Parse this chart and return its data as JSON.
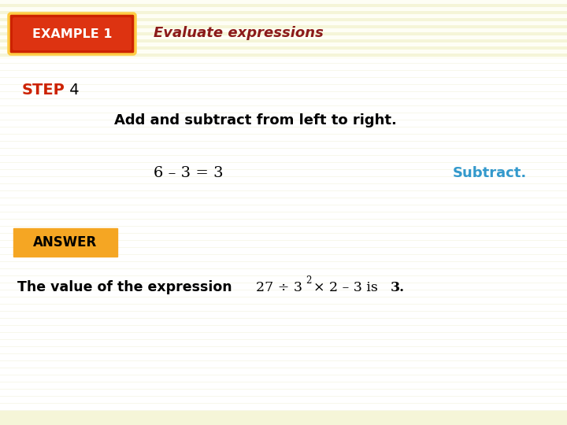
{
  "bg_color": "#fffef0",
  "stripe_color_a": "#f5f5d8",
  "stripe_color_b": "#fefef5",
  "body_color": "#ffffff",
  "example_box_color": "#cc2200",
  "example_box_text": "EXAMPLE 1",
  "example_box_text_color": "#ffffff",
  "header_title": "Evaluate expressions",
  "header_title_color": "#8b1a1a",
  "step_label": "STEP",
  "step_number": " 4",
  "step_label_color": "#cc2200",
  "step_number_color": "#000000",
  "step_description": "Add and subtract from left to right.",
  "equation": "6 – 3 = 3",
  "equation_color": "#000000",
  "subtract_label": "Subtract.",
  "subtract_label_color": "#3399cc",
  "answer_box_color": "#f5a623",
  "answer_box_text": "ANSWER",
  "answer_box_text_color": "#000000",
  "answer_line_prefix": "The value of the expression ",
  "answer_line_color": "#000000",
  "answer_expression": "27 ÷ 3",
  "answer_superscript": "2",
  "answer_suffix": "× 2 – 3 is 3.",
  "fig_width": 7.2,
  "fig_height": 5.4,
  "dpi": 100
}
